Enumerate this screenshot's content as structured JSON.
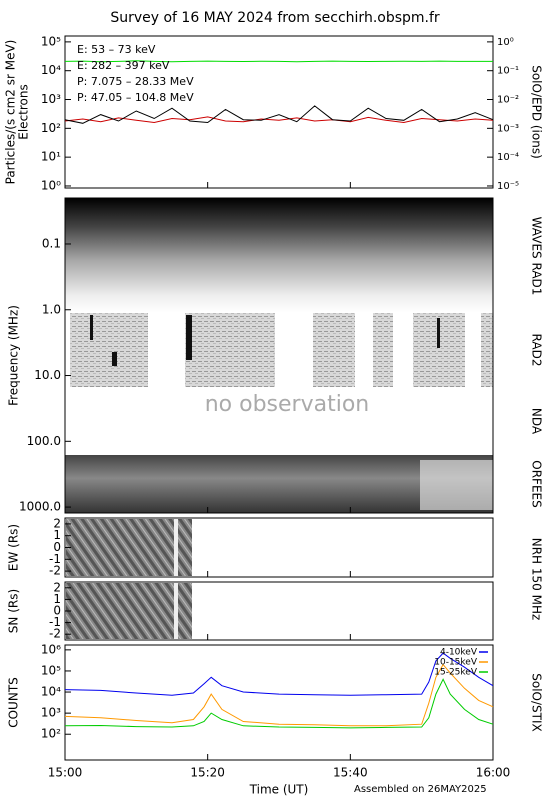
{
  "title": "Survey of 16 MAY 2024 from secchirh.obspm.fr",
  "chart_data": [
    {
      "type": "line",
      "panel": "particles",
      "ylabel": "Particles/(s cm2 sr MeV)",
      "ylabel2": "Electrons",
      "right_label": "SolO/EPD (ions)",
      "log": true,
      "ylim": [
        0.85,
        160000
      ],
      "yticks": [
        {
          "value": 1,
          "label": "10⁰"
        },
        {
          "value": 10,
          "label": "10¹"
        },
        {
          "value": 100,
          "label": "10²"
        },
        {
          "value": 1000,
          "label": "10³"
        },
        {
          "value": 10000,
          "label": "10⁴"
        },
        {
          "value": 100000,
          "label": "10⁵"
        }
      ],
      "y2lim": [
        8.5e-06,
        1.6
      ],
      "y2ticks": [
        {
          "value": 1e-05,
          "label": "10⁻⁵"
        },
        {
          "value": 0.0001,
          "label": "10⁻⁴"
        },
        {
          "value": 0.001,
          "label": "10⁻³"
        },
        {
          "value": 0.01,
          "label": "10⁻²"
        },
        {
          "value": 0.1,
          "label": "10⁻¹"
        },
        {
          "value": 1,
          "label": "10⁰"
        }
      ],
      "xlim": [
        0,
        60
      ],
      "x": [
        0,
        2.5,
        5,
        7.5,
        10,
        12.5,
        15,
        17.5,
        20,
        22.5,
        25,
        27.5,
        30,
        32.5,
        35,
        37.5,
        40,
        42.5,
        45,
        47.5,
        50,
        52.5,
        55,
        57.5,
        60
      ],
      "series": [
        {
          "name": "E: 53 – 73 keV",
          "color": "#00dd00",
          "values": [
            21000,
            21500,
            20500,
            21000,
            22000,
            21000,
            20500,
            21000,
            21500,
            21000,
            20800,
            21200,
            21000,
            20500,
            21000,
            21500,
            21000,
            20800,
            21000,
            21200,
            21000,
            21500,
            21000,
            21000,
            21000
          ]
        },
        {
          "name": "E: 282 – 397 keV",
          "color": "#cc0000",
          "values": [
            180,
            210,
            170,
            230,
            190,
            160,
            220,
            200,
            250,
            180,
            170,
            210,
            190,
            230,
            180,
            200,
            170,
            240,
            190,
            160,
            220,
            200,
            180,
            210,
            190
          ]
        },
        {
          "name": "P: 7.075 – 28.33 MeV",
          "color": "#000000",
          "values": [
            200,
            150,
            300,
            180,
            400,
            220,
            500,
            180,
            160,
            450,
            200,
            190,
            300,
            170,
            600,
            200,
            180,
            500,
            220,
            190,
            450,
            170,
            210,
            350,
            200
          ]
        },
        {
          "name": "P: 47.05 – 104.8 MeV",
          "color": "#0000cc",
          "values": [
            null,
            null,
            null,
            null,
            null,
            null,
            null,
            null,
            null,
            null,
            null,
            null,
            null,
            null,
            null,
            null,
            null,
            null,
            null,
            null,
            null,
            null,
            null,
            null,
            null
          ]
        }
      ]
    },
    {
      "type": "spectrogram",
      "ylabel": "Frequency (MHz)",
      "log": true,
      "inverted": true,
      "ylim": [
        0.02,
        1230
      ],
      "yticks": [
        0.1,
        {
          "value": 1,
          "label": "1.0"
        },
        {
          "value": 10,
          "label": "10.0"
        },
        {
          "value": 100,
          "label": "100.0"
        },
        {
          "value": 1000,
          "label": "1000.0"
        }
      ],
      "instruments": [
        "WAVES RAD1",
        "RAD2",
        "NDA",
        "ORFEES"
      ],
      "annotation": "no observation"
    },
    {
      "type": "image",
      "ylabel": "EW (Rs)",
      "right_label": "NRH 150 MHz",
      "ylim": [
        -2.5,
        2.5
      ],
      "yticks": [
        -2,
        -1,
        0,
        1,
        2
      ]
    },
    {
      "type": "image",
      "ylabel": "SN (Rs)",
      "ylim": [
        -2.5,
        2.5
      ],
      "yticks": [
        -2,
        -1,
        0,
        1,
        2
      ]
    },
    {
      "type": "line",
      "panel": "stix",
      "ylabel": "COUNTS",
      "right_label": "SolO/STIX",
      "log": true,
      "ylim": [
        6,
        1700000
      ],
      "yticks": [
        {
          "value": 100,
          "label": "10²"
        },
        {
          "value": 1000,
          "label": "10³"
        },
        {
          "value": 10000,
          "label": "10⁴"
        },
        {
          "value": 100000,
          "label": "10⁵"
        },
        {
          "value": 1000000,
          "label": "10⁶"
        }
      ],
      "xlim": [
        0,
        60
      ],
      "xticks": [
        {
          "value": 0,
          "label": "15:00"
        },
        {
          "value": 20,
          "label": "15:20"
        },
        {
          "value": 40,
          "label": "15:40"
        },
        {
          "value": 60,
          "label": "16:00"
        }
      ],
      "xlabel": "Time (UT)",
      "note": "Assembled on 26MAY2025",
      "x": [
        0,
        5,
        10,
        15,
        18,
        19.5,
        20.5,
        22,
        25,
        30,
        35,
        40,
        45,
        50,
        51,
        52,
        53,
        54,
        56,
        58,
        60
      ],
      "series": [
        {
          "name": "4-10keV",
          "color": "#0000ee",
          "values": [
            13000,
            12000,
            9000,
            7000,
            9000,
            25000,
            50000,
            20000,
            10000,
            8000,
            7500,
            7000,
            7500,
            8000,
            30000,
            300000,
            700000,
            400000,
            150000,
            50000,
            20000
          ]
        },
        {
          "name": "10-15keV",
          "color": "#ff9900",
          "values": [
            700,
            600,
            450,
            350,
            500,
            2000,
            8000,
            1500,
            400,
            300,
            280,
            250,
            250,
            300,
            3000,
            50000,
            200000,
            80000,
            15000,
            4000,
            2000
          ]
        },
        {
          "name": "15-25keV",
          "color": "#00cc00",
          "values": [
            250,
            260,
            230,
            220,
            250,
            400,
            1000,
            500,
            250,
            220,
            210,
            200,
            210,
            220,
            600,
            8000,
            40000,
            8000,
            1500,
            500,
            300
          ]
        }
      ]
    }
  ]
}
